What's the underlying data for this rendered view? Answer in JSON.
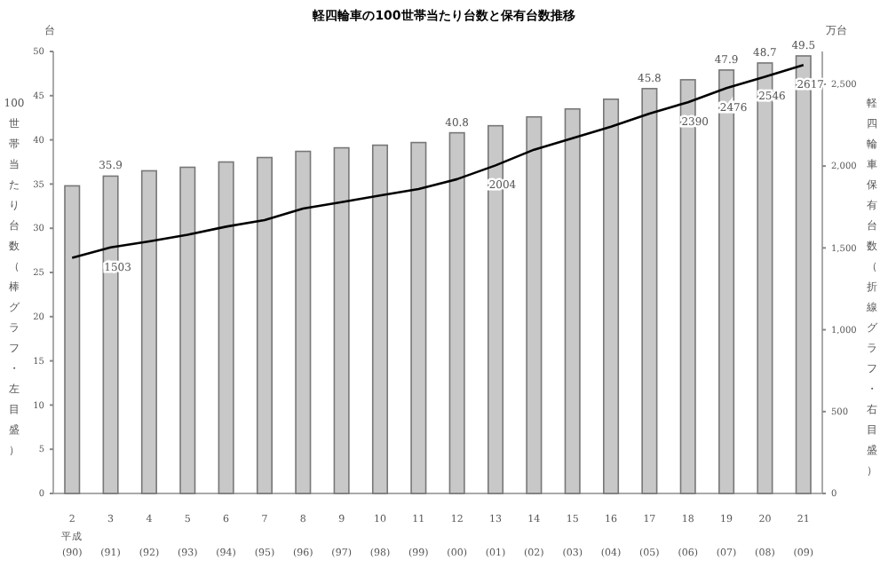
{
  "chart_data": {
    "type": "bar",
    "title": "軽四輪車の100世帯当たり台数と保有台数推移",
    "categories": [
      "2\n(90)",
      "3\n(91)",
      "4\n(92)",
      "5\n(93)",
      "6\n(94)",
      "7\n(95)",
      "8\n(96)",
      "9\n(97)",
      "10\n(98)",
      "11\n(99)",
      "12\n(00)",
      "13\n(01)",
      "14\n(02)",
      "15\n(03)",
      "16\n(04)",
      "17\n(05)",
      "18\n(06)",
      "19\n(07)",
      "20\n(08)",
      "21\n(09)"
    ],
    "xlabel": "平成",
    "ylabel": "100世帯当たり台数（棒グラフ・左目盛）",
    "y2label": "軽四輪車保有台数（折線グラフ・右目盛）",
    "annotations": [
      "台",
      "万台"
    ],
    "series": [
      {
        "color": "#c8c8c8",
        "values": [
          34.8,
          35.9,
          36.5,
          36.9,
          37.5,
          38.0,
          38.7,
          39.1,
          39.4,
          39.7,
          40.8,
          41.6,
          42.6,
          43.5,
          44.6,
          45.8,
          46.8,
          47.9,
          48.7,
          49.5
        ],
        "value_labels": [
          null,
          "35.9",
          null,
          null,
          null,
          null,
          null,
          null,
          null,
          null,
          "40.8",
          null,
          null,
          null,
          null,
          "45.8",
          null,
          "47.9",
          "48.7",
          "49.5"
        ]
      },
      {
        "type": "line",
        "axis": "y2",
        "color": "#000000",
        "values": [
          1440,
          1503,
          1540,
          1580,
          1630,
          1670,
          1740,
          1780,
          1820,
          1860,
          1920,
          2004,
          2100,
          2170,
          2240,
          2320,
          2390,
          2476,
          2546,
          2617
        ],
        "value_labels": [
          null,
          "1503",
          null,
          null,
          null,
          null,
          null,
          null,
          null,
          null,
          null,
          "2004",
          null,
          null,
          null,
          null,
          "2390",
          "2476",
          "2546",
          "2617"
        ]
      }
    ],
    "ylim": [
      0,
      50
    ],
    "yticks": [
      0,
      5,
      10,
      15,
      20,
      25,
      30,
      35,
      40,
      45,
      50
    ],
    "y2lim": [
      0,
      2700
    ],
    "y2ticks": [
      0,
      500,
      {
        "value": 1000,
        "label": "1,000"
      },
      {
        "value": 1500,
        "label": "1,500"
      },
      {
        "value": 2000,
        "label": "2,000"
      },
      {
        "value": 2500,
        "label": "2,500"
      }
    ],
    "grid": false,
    "marker": "none",
    "line_style": "solid"
  }
}
